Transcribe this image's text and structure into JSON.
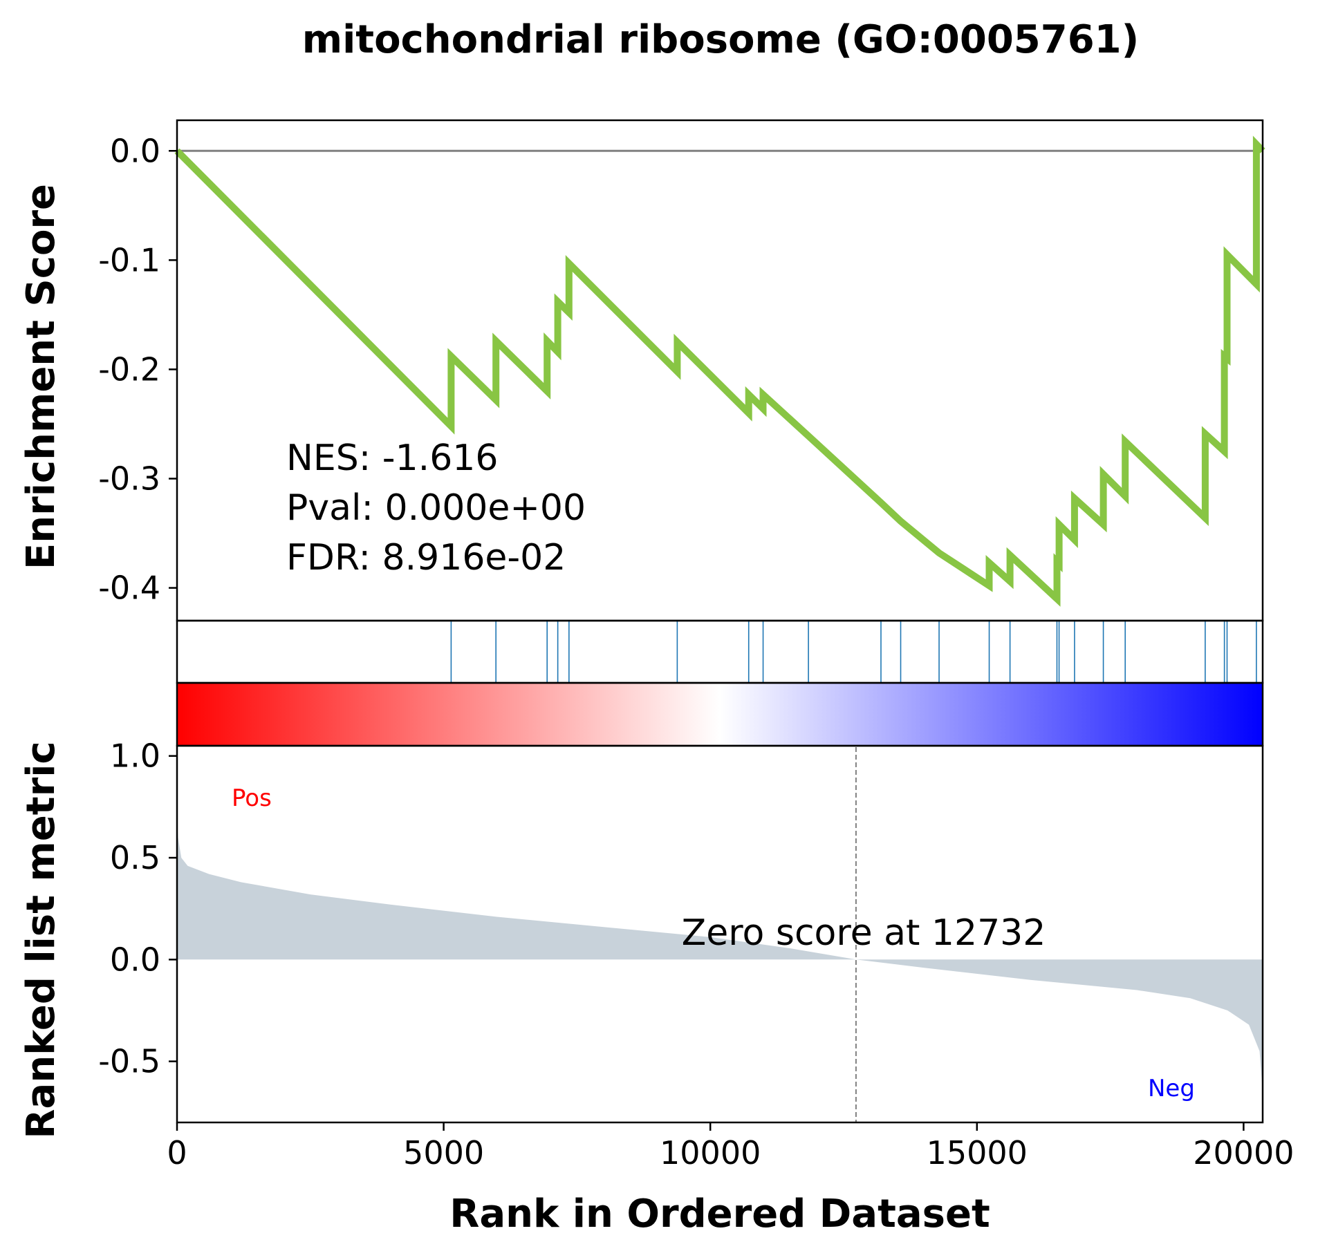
{
  "chart_data": {
    "type": "line",
    "title": "mitochondrial ribosome (GO:0005761)",
    "xlabel": "Rank in Ordered Dataset",
    "xlim": [
      0,
      20358
    ],
    "xticks": [
      0,
      5000,
      10000,
      15000,
      20000
    ],
    "es_panel": {
      "ylabel": "Enrichment Score",
      "ylim": [
        -0.43,
        0.028
      ],
      "yticks": [
        0.0,
        -0.1,
        -0.2,
        -0.3,
        -0.4
      ],
      "ytick_labels": [
        "0.0",
        "-0.1",
        "-0.2",
        "-0.3",
        "-0.4"
      ],
      "zero_line": 0.0,
      "line_color": "#88c544",
      "points": [
        [
          0,
          0.0
        ],
        [
          5140,
          -0.252
        ],
        [
          5140,
          -0.188
        ],
        [
          5980,
          -0.228
        ],
        [
          5980,
          -0.174
        ],
        [
          6940,
          -0.22
        ],
        [
          6940,
          -0.174
        ],
        [
          7140,
          -0.184
        ],
        [
          7140,
          -0.138
        ],
        [
          7350,
          -0.148
        ],
        [
          7350,
          -0.103
        ],
        [
          9380,
          -0.202
        ],
        [
          9380,
          -0.175
        ],
        [
          10720,
          -0.24
        ],
        [
          10720,
          -0.223
        ],
        [
          10990,
          -0.236
        ],
        [
          10990,
          -0.223
        ],
        [
          11840,
          -0.261
        ],
        [
          13200,
          -0.322
        ],
        [
          13570,
          -0.339
        ],
        [
          14290,
          -0.368
        ],
        [
          15230,
          -0.398
        ],
        [
          15230,
          -0.377
        ],
        [
          15620,
          -0.394
        ],
        [
          15620,
          -0.37
        ],
        [
          16500,
          -0.41
        ],
        [
          16500,
          -0.376
        ],
        [
          16540,
          -0.378
        ],
        [
          16540,
          -0.342
        ],
        [
          16830,
          -0.356
        ],
        [
          16830,
          -0.318
        ],
        [
          17370,
          -0.342
        ],
        [
          17370,
          -0.296
        ],
        [
          17780,
          -0.316
        ],
        [
          17780,
          -0.266
        ],
        [
          19280,
          -0.336
        ],
        [
          19280,
          -0.259
        ],
        [
          19640,
          -0.275
        ],
        [
          19640,
          -0.188
        ],
        [
          19690,
          -0.19
        ],
        [
          19690,
          -0.095
        ],
        [
          20240,
          -0.122
        ],
        [
          20240,
          0.006
        ],
        [
          20358,
          0.0
        ]
      ]
    },
    "hits": [
      5140,
      5980,
      6940,
      7140,
      7350,
      9380,
      10720,
      10990,
      11840,
      13200,
      13570,
      14290,
      15230,
      15620,
      16500,
      16540,
      16830,
      17370,
      17780,
      19280,
      19640,
      19690,
      20240
    ],
    "hit_color": "#1f77b4",
    "colorbar": {
      "colors": [
        "#ff0000",
        "#ffffff",
        "#0000ff"
      ]
    },
    "metric_panel": {
      "ylabel": "Ranked list metric",
      "ylim": [
        -0.8,
        1.05
      ],
      "yticks": [
        1.0,
        0.5,
        0.0,
        -0.5
      ],
      "ytick_labels": [
        "1.0",
        "0.5",
        "0.0",
        "-0.5"
      ],
      "fill_color": "#c8d2da",
      "curve": [
        [
          0,
          0.7
        ],
        [
          20,
          0.6
        ],
        [
          80,
          0.5
        ],
        [
          200,
          0.46
        ],
        [
          600,
          0.42
        ],
        [
          1200,
          0.38
        ],
        [
          2500,
          0.32
        ],
        [
          4000,
          0.27
        ],
        [
          6000,
          0.21
        ],
        [
          8000,
          0.16
        ],
        [
          10000,
          0.11
        ],
        [
          11500,
          0.055
        ],
        [
          12732,
          0.0
        ],
        [
          14000,
          -0.04
        ],
        [
          16000,
          -0.1
        ],
        [
          18000,
          -0.15
        ],
        [
          19000,
          -0.19
        ],
        [
          19700,
          -0.25
        ],
        [
          20100,
          -0.32
        ],
        [
          20300,
          -0.45
        ],
        [
          20358,
          -0.65
        ]
      ],
      "zero_cross": 12732,
      "zero_label": "Zero score at 12732",
      "pos_label": "Pos",
      "pos_color": "#ff0000",
      "neg_label": "Neg",
      "neg_color": "#0000ff"
    },
    "stats": [
      "NES: -1.616",
      "Pval: 0.000e+00",
      "FDR: 8.916e-02"
    ],
    "grid": false
  }
}
